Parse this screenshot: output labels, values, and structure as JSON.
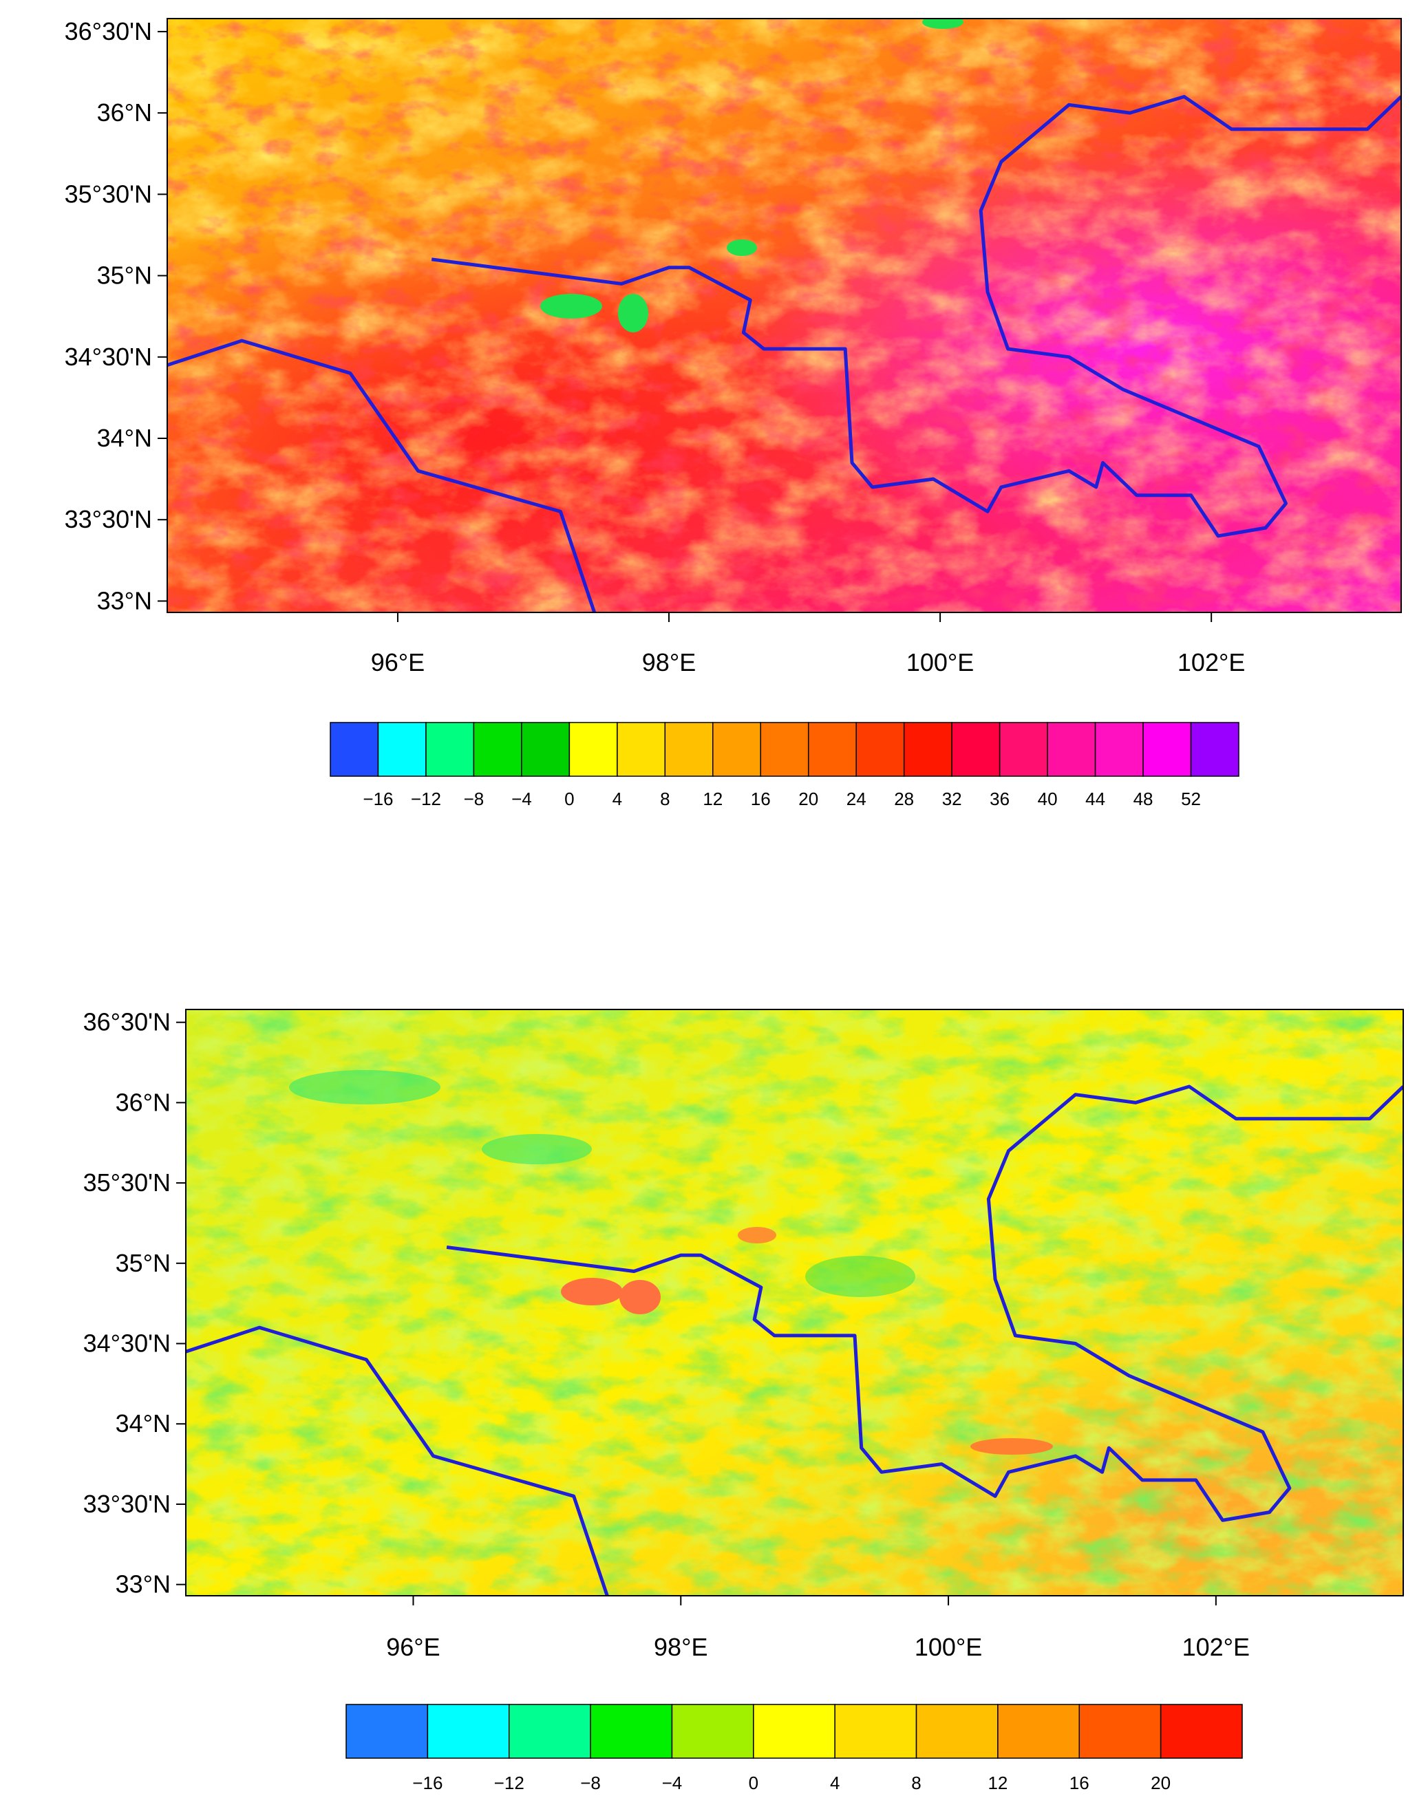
{
  "maps": [
    {
      "lon_range": [
        94.3,
        103.4
      ],
      "lat_range": [
        32.93,
        36.58
      ],
      "lat_ticks": [
        {
          "lat": 36.5,
          "label": "36°30'N"
        },
        {
          "lat": 36.0,
          "label": "36°N"
        },
        {
          "lat": 35.5,
          "label": "35°30'N"
        },
        {
          "lat": 35.0,
          "label": "35°N"
        },
        {
          "lat": 34.5,
          "label": "34°30'N"
        },
        {
          "lat": 34.0,
          "label": "34°N"
        },
        {
          "lat": 33.5,
          "label": "33°30'N"
        },
        {
          "lat": 33.0,
          "label": "33°N"
        }
      ],
      "lon_ticks": [
        {
          "lon": 96,
          "label": "96°E"
        },
        {
          "lon": 98,
          "label": "98°E"
        },
        {
          "lon": 100,
          "label": "100°E"
        },
        {
          "lon": 102,
          "label": "102°E"
        }
      ],
      "colorbar": {
        "colors": [
          "#1f4cff",
          "#00ffff",
          "#00ff80",
          "#00e000",
          "#00d000",
          "#ffff00",
          "#ffe000",
          "#ffc000",
          "#ffa000",
          "#ff7800",
          "#ff6000",
          "#ff3c00",
          "#ff1800",
          "#ff0040",
          "#ff1070",
          "#ff10a0",
          "#ff10c0",
          "#ff00f0",
          "#9a00ff"
        ],
        "labels": [
          "−16",
          "−12",
          "−8",
          "−4",
          "0",
          "4",
          "8",
          "12",
          "16",
          "20",
          "24",
          "28",
          "32",
          "36",
          "40",
          "44",
          "48",
          "52"
        ],
        "first_label_index": 1
      }
    },
    {
      "lon_range": [
        94.3,
        103.4
      ],
      "lat_range": [
        32.93,
        36.58
      ],
      "lat_ticks": [
        {
          "lat": 36.5,
          "label": "36°30'N"
        },
        {
          "lat": 36.0,
          "label": "36°N"
        },
        {
          "lat": 35.5,
          "label": "35°30'N"
        },
        {
          "lat": 35.0,
          "label": "35°N"
        },
        {
          "lat": 34.5,
          "label": "34°30'N"
        },
        {
          "lat": 34.0,
          "label": "34°N"
        },
        {
          "lat": 33.5,
          "label": "33°30'N"
        },
        {
          "lat": 33.0,
          "label": "33°N"
        }
      ],
      "lon_ticks": [
        {
          "lon": 96,
          "label": "96°E"
        },
        {
          "lon": 98,
          "label": "98°E"
        },
        {
          "lon": 100,
          "label": "100°E"
        },
        {
          "lon": 102,
          "label": "102°E"
        }
      ],
      "colorbar": {
        "colors": [
          "#1f7cff",
          "#00ffff",
          "#00ff90",
          "#00f000",
          "#a0f000",
          "#ffff00",
          "#ffe000",
          "#ffc000",
          "#ff9800",
          "#ff5800",
          "#ff1800"
        ],
        "labels": [
          "−16",
          "−12",
          "−8",
          "−4",
          "0",
          "4",
          "8",
          "12",
          "16",
          "20"
        ],
        "first_label_index": 1
      }
    }
  ],
  "boundary_lines": [
    {
      "color": "#1f1fd8",
      "points": [
        [
          94.3,
          34.45
        ],
        [
          94.85,
          34.6
        ],
        [
          95.65,
          34.4
        ],
        [
          96.15,
          33.8
        ],
        [
          97.2,
          33.55
        ],
        [
          97.45,
          32.93
        ]
      ]
    },
    {
      "color": "#1f1fd8",
      "points": [
        [
          96.25,
          35.1
        ],
        [
          97.65,
          34.95
        ],
        [
          98.0,
          35.05
        ],
        [
          98.15,
          35.05
        ],
        [
          98.6,
          34.85
        ],
        [
          98.55,
          34.65
        ],
        [
          98.7,
          34.55
        ],
        [
          99.3,
          34.55
        ],
        [
          99.35,
          33.85
        ],
        [
          99.5,
          33.7
        ],
        [
          99.95,
          33.75
        ],
        [
          100.35,
          33.55
        ],
        [
          100.45,
          33.7
        ],
        [
          100.95,
          33.8
        ],
        [
          101.15,
          33.7
        ],
        [
          101.2,
          33.85
        ],
        [
          101.45,
          33.65
        ],
        [
          101.85,
          33.65
        ],
        [
          102.05,
          33.4
        ],
        [
          102.4,
          33.45
        ],
        [
          102.55,
          33.6
        ],
        [
          102.35,
          33.95
        ],
        [
          101.35,
          34.3
        ],
        [
          100.95,
          34.5
        ],
        [
          100.5,
          34.55
        ],
        [
          100.35,
          34.9
        ],
        [
          100.3,
          35.4
        ],
        [
          100.45,
          35.7
        ],
        [
          100.95,
          36.05
        ],
        [
          101.4,
          36.0
        ],
        [
          101.8,
          36.1
        ],
        [
          102.15,
          35.9
        ],
        [
          103.15,
          35.9
        ],
        [
          103.4,
          36.1
        ]
      ]
    }
  ]
}
